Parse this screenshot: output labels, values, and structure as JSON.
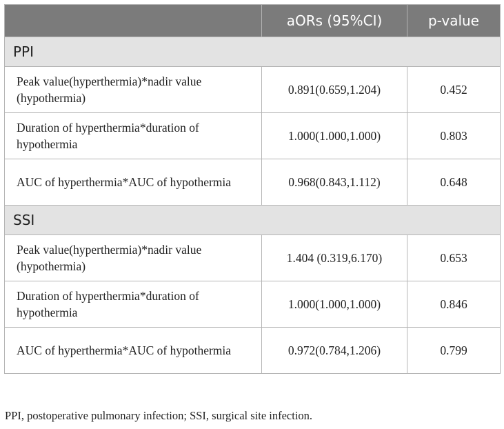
{
  "table": {
    "headers": [
      "",
      "aORs (95%CI)",
      "p-value"
    ],
    "sections": [
      {
        "name": "PPI",
        "rows": [
          {
            "label": "Peak value(hyperthermia)*nadir value (hypothermia)",
            "aor": "0.891(0.659,1.204)",
            "p": "0.452"
          },
          {
            "label": "Duration of hyperthermia*duration of hypothermia",
            "aor": "1.000(1.000,1.000)",
            "p": "0.803"
          },
          {
            "label": "AUC of hyperthermia*AUC of hypothermia",
            "aor": "0.968(0.843,1.112)",
            "p": "0.648"
          }
        ]
      },
      {
        "name": "SSI",
        "rows": [
          {
            "label": "Peak value(hyperthermia)*nadir value (hypothermia)",
            "aor": "1.404 (0.319,6.170)",
            "p": "0.653"
          },
          {
            "label": "Duration of hyperthermia*duration of hypothermia",
            "aor": "1.000(1.000,1.000)",
            "p": "0.846"
          },
          {
            "label": "AUC of hyperthermia*AUC of hypothermia",
            "aor": "0.972(0.784,1.206)",
            "p": "0.799"
          }
        ]
      }
    ]
  },
  "footnote": "PPI, postoperative pulmonary infection; SSI, surgical site infection.",
  "colors": {
    "header_bg": "#7b7b7b",
    "section_bg": "#e3e3e3",
    "border": "#b4b4b4"
  }
}
